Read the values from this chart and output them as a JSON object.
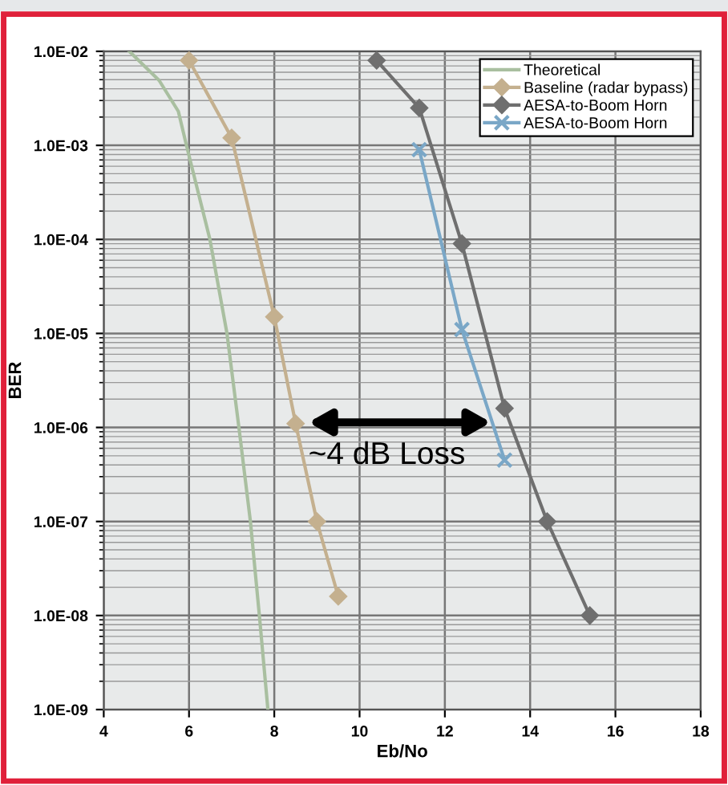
{
  "chart_data": {
    "type": "line",
    "xlabel": "Eb/No",
    "ylabel": "BER",
    "log": "y",
    "xlim": [
      4,
      18
    ],
    "xticks": [
      4,
      6,
      8,
      10,
      12,
      14,
      16,
      18
    ],
    "ylim": [
      1e-09,
      0.01
    ],
    "yticks": [
      {
        "value": 1e-09,
        "label": "1.0E-09"
      },
      {
        "value": 1e-08,
        "label": "1.0E-08"
      },
      {
        "value": 1e-07,
        "label": "1.0E-07"
      },
      {
        "value": 1e-06,
        "label": "1.0E-06"
      },
      {
        "value": 1e-05,
        "label": "1.0E-05"
      },
      {
        "value": 0.0001,
        "label": "1.0E-04"
      },
      {
        "value": 0.001,
        "label": "1.0E-03"
      },
      {
        "value": 0.01,
        "label": "1.0E-02"
      }
    ],
    "grid": true,
    "legend": "top right",
    "series": [
      {
        "name": "Theoretical",
        "color": "#a9bfa0",
        "marker": "none",
        "x": [
          4.6,
          5.3,
          5.75,
          5.94,
          6.49,
          6.89,
          7.17,
          7.44,
          7.65,
          7.85
        ],
        "values": [
          0.01,
          0.0049,
          0.0023,
          0.001,
          0.0001,
          1e-05,
          1e-06,
          1e-07,
          1e-08,
          1e-09
        ]
      },
      {
        "name": "Baseline (radar bypass)",
        "color": "#c4b08f",
        "marker": "diamond",
        "x": [
          6,
          7,
          8,
          8.5,
          9,
          9.5
        ],
        "values": [
          0.008,
          0.0012,
          1.5e-05,
          1.1e-06,
          1e-07,
          1.6e-08
        ]
      },
      {
        "name": "AESA-to-Boom Horn",
        "color": "#6f6f6f",
        "marker": "diamond",
        "x": [
          10.4,
          11.4,
          12.4,
          13.4,
          14.4,
          15.4
        ],
        "values": [
          0.008,
          0.0025,
          9e-05,
          1.6e-06,
          1e-07,
          1e-08
        ]
      },
      {
        "name": "AESA-to-Boom Horn",
        "color": "#7aa7c7",
        "marker": "cross",
        "x": [
          11.4,
          12.4,
          13.4
        ],
        "values": [
          0.0009,
          1.1e-05,
          4.5e-07
        ]
      }
    ],
    "annotations": [
      {
        "text": "~4 dB Loss",
        "x": 8.8,
        "y": 5e-07
      }
    ]
  }
}
